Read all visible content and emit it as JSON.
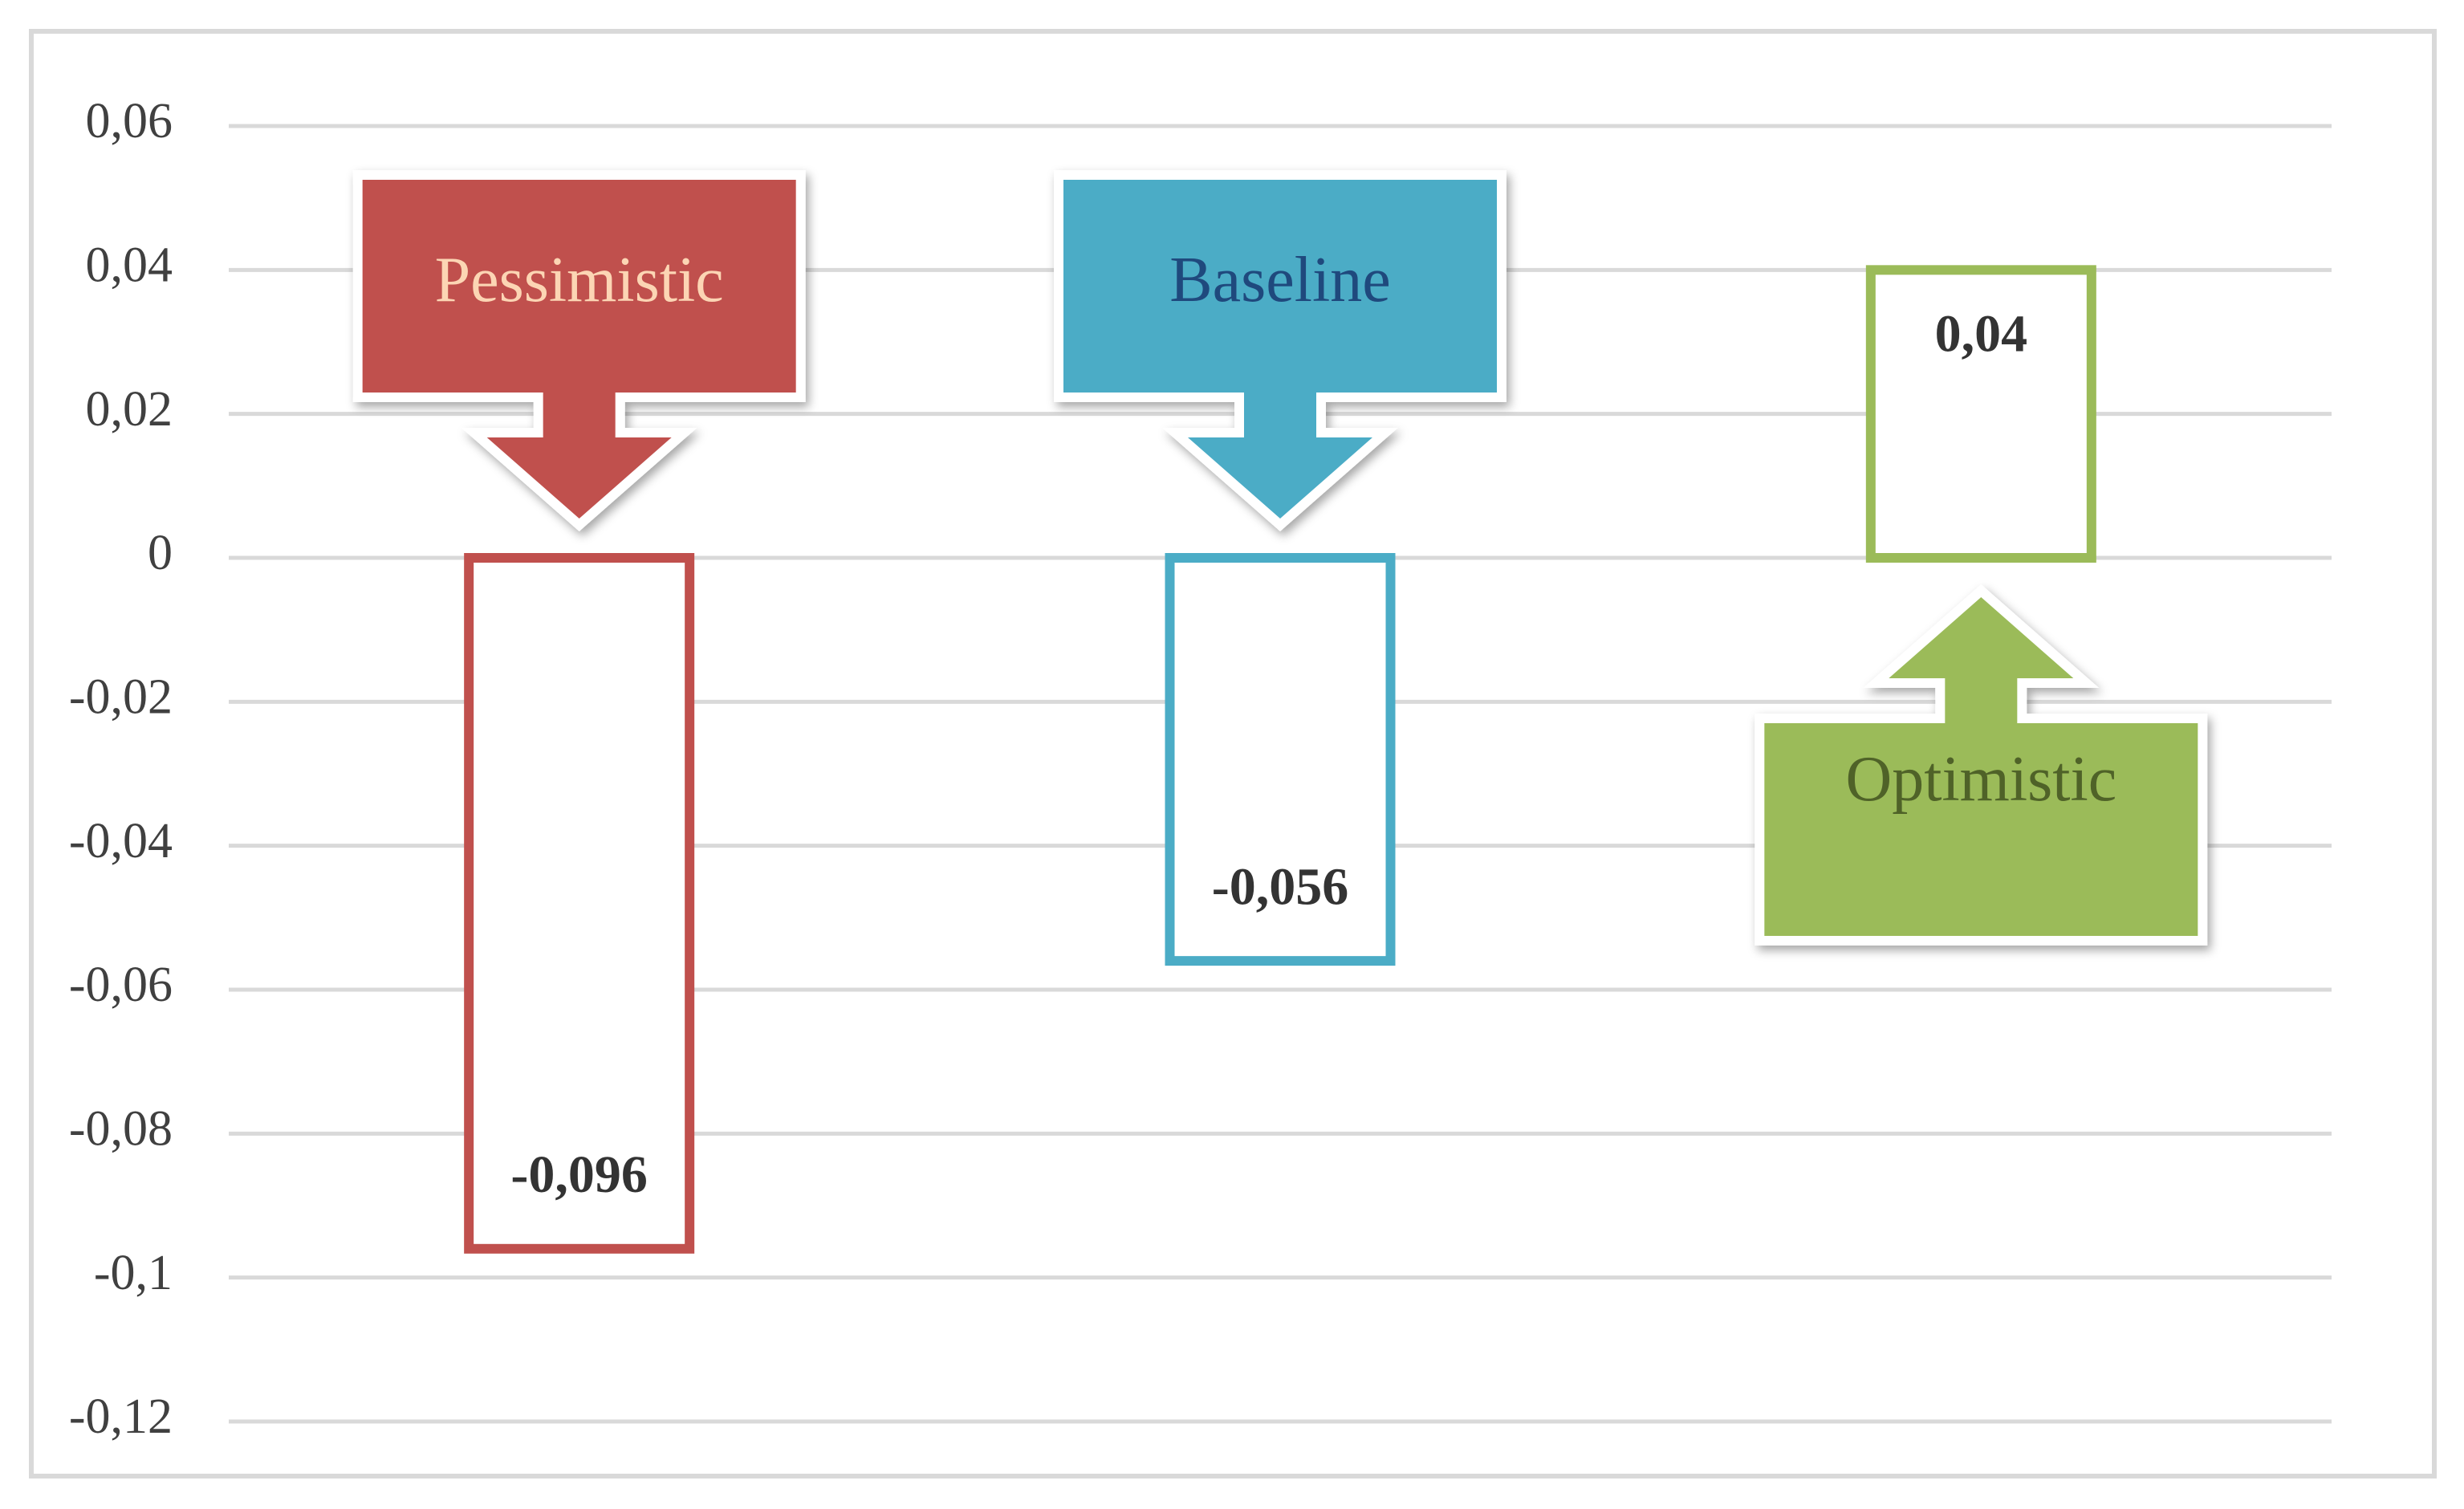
{
  "chart_data": {
    "type": "bar",
    "categories": [
      "Pessimistic",
      "Baseline",
      "Optimistic"
    ],
    "values": [
      -0.096,
      -0.056,
      0.04
    ],
    "value_labels": [
      "-0,096",
      "-0,056",
      "0,04"
    ],
    "colors": [
      "#c0504d",
      "#4bacc6",
      "#9bbb59"
    ],
    "label_colors": [
      "#fcd5b4",
      "#1f497d",
      "#4f6228"
    ],
    "ylim": [
      -0.12,
      0.06
    ],
    "yticks": [
      {
        "value": -0.12,
        "label": "-0,12"
      },
      {
        "value": -0.1,
        "label": "-0,1"
      },
      {
        "value": -0.08,
        "label": "-0,08"
      },
      {
        "value": -0.06,
        "label": "-0,06"
      },
      {
        "value": -0.04,
        "label": "-0,04"
      },
      {
        "value": -0.02,
        "label": "-0,02"
      },
      0,
      {
        "value": 0.02,
        "label": "0,02"
      },
      {
        "value": 0.04,
        "label": "0,04"
      },
      {
        "value": 0.06,
        "label": "0,06"
      }
    ],
    "grid": true
  }
}
